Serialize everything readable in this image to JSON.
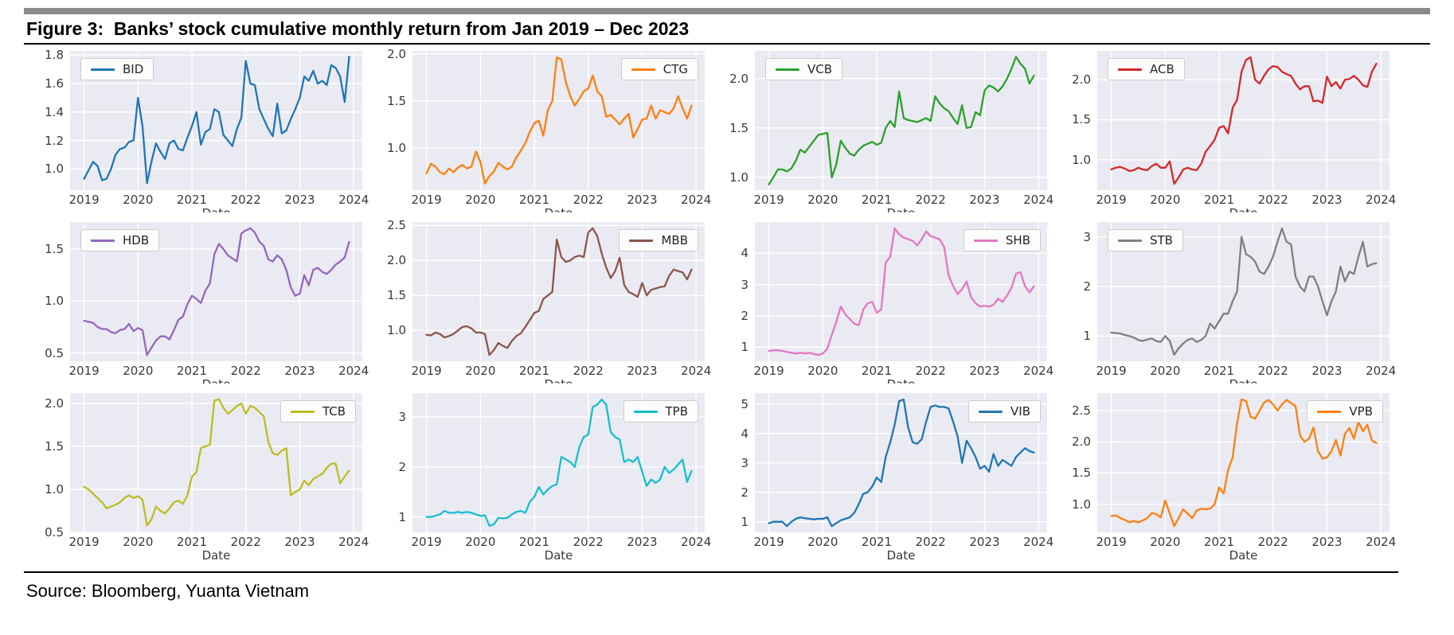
{
  "page": {
    "title": "Figure 3:  Banks’ stock cumulative monthly return from Jan 2019 – Dec 2023",
    "source": "Source: Bloomberg, Yuanta Vietnam",
    "background": "#ffffff",
    "top_bar_color": "#8a8a8a",
    "rule_color": "#000000"
  },
  "axes": {
    "x_label": "Date",
    "x_ticks": [
      "2019",
      "2020",
      "2021",
      "2022",
      "2023",
      "2024"
    ],
    "x_tick_years": [
      2019,
      2020,
      2021,
      2022,
      2023,
      2024
    ],
    "plot_background": "#eaeaf2",
    "grid_color": "#ffffff",
    "grid": true
  },
  "layout": {
    "xlim": [
      2018.74,
      2024.16
    ],
    "rows": 3,
    "cols": 4
  },
  "chart_data": [
    {
      "type": "line",
      "name": "BID",
      "color": "#1f77b4",
      "legend_pos": "top-left",
      "xlabel": "Date",
      "x_start": "2019-01",
      "x_freq_months": 1,
      "x_range": [
        2019.0,
        2023.92
      ],
      "ylim": [
        0.85,
        1.83
      ],
      "y_ticks": [
        1.0,
        1.2,
        1.4,
        1.6,
        1.8
      ],
      "y_tick_labels": [
        "1.0",
        "1.2",
        "1.4",
        "1.6",
        "1.8"
      ],
      "values": [
        0.93,
        0.99,
        1.05,
        1.02,
        0.92,
        0.93,
        1.0,
        1.1,
        1.14,
        1.15,
        1.19,
        1.2,
        1.5,
        1.3,
        0.9,
        1.05,
        1.18,
        1.12,
        1.07,
        1.18,
        1.2,
        1.14,
        1.13,
        1.22,
        1.3,
        1.4,
        1.17,
        1.26,
        1.28,
        1.42,
        1.4,
        1.24,
        1.2,
        1.16,
        1.28,
        1.36,
        1.76,
        1.6,
        1.59,
        1.42,
        1.35,
        1.28,
        1.23,
        1.46,
        1.25,
        1.27,
        1.35,
        1.42,
        1.5,
        1.65,
        1.62,
        1.69,
        1.6,
        1.62,
        1.59,
        1.73,
        1.71,
        1.65,
        1.47,
        1.79
      ]
    },
    {
      "type": "line",
      "name": "CTG",
      "color": "#ff7f0e",
      "legend_pos": "top-right",
      "xlabel": "Date",
      "x_start": "2019-01",
      "x_freq_months": 1,
      "x_range": [
        2019.0,
        2023.92
      ],
      "ylim": [
        0.55,
        2.03
      ],
      "y_ticks": [
        1.0,
        1.5,
        2.0
      ],
      "y_tick_labels": [
        "1.0",
        "1.5",
        "2.0"
      ],
      "values": [
        0.73,
        0.83,
        0.8,
        0.74,
        0.72,
        0.78,
        0.74,
        0.79,
        0.82,
        0.78,
        0.8,
        0.96,
        0.85,
        0.62,
        0.7,
        0.75,
        0.84,
        0.8,
        0.77,
        0.8,
        0.9,
        0.97,
        1.05,
        1.17,
        1.26,
        1.29,
        1.13,
        1.4,
        1.5,
        1.96,
        1.94,
        1.7,
        1.55,
        1.45,
        1.52,
        1.6,
        1.63,
        1.77,
        1.6,
        1.55,
        1.33,
        1.35,
        1.3,
        1.25,
        1.31,
        1.36,
        1.11,
        1.2,
        1.3,
        1.31,
        1.45,
        1.31,
        1.4,
        1.38,
        1.36,
        1.42,
        1.55,
        1.42,
        1.31,
        1.45
      ]
    },
    {
      "type": "line",
      "name": "VCB",
      "color": "#2ca02c",
      "legend_pos": "top-left",
      "xlabel": "Date",
      "x_start": "2019-01",
      "x_freq_months": 1,
      "x_range": [
        2019.0,
        2023.92
      ],
      "ylim": [
        0.87,
        2.28
      ],
      "y_ticks": [
        1.0,
        1.5,
        2.0
      ],
      "y_tick_labels": [
        "1.0",
        "1.5",
        "2.0"
      ],
      "values": [
        0.93,
        1.0,
        1.08,
        1.08,
        1.06,
        1.09,
        1.17,
        1.28,
        1.25,
        1.31,
        1.37,
        1.43,
        1.44,
        1.45,
        1.0,
        1.13,
        1.37,
        1.3,
        1.24,
        1.22,
        1.28,
        1.32,
        1.34,
        1.36,
        1.33,
        1.35,
        1.5,
        1.57,
        1.51,
        1.87,
        1.6,
        1.58,
        1.57,
        1.56,
        1.58,
        1.6,
        1.57,
        1.82,
        1.75,
        1.7,
        1.67,
        1.6,
        1.54,
        1.73,
        1.5,
        1.51,
        1.66,
        1.63,
        1.88,
        1.93,
        1.91,
        1.87,
        1.92,
        2.0,
        2.1,
        2.22,
        2.15,
        2.1,
        1.95,
        2.03
      ]
    },
    {
      "type": "line",
      "name": "ACB",
      "color": "#d62728",
      "legend_pos": "top-left",
      "xlabel": "Date",
      "x_start": "2019-01",
      "x_freq_months": 1,
      "x_range": [
        2019.0,
        2023.92
      ],
      "ylim": [
        0.62,
        2.36
      ],
      "y_ticks": [
        1.0,
        1.5,
        2.0
      ],
      "y_tick_labels": [
        "1.0",
        "1.5",
        "2.0"
      ],
      "values": [
        0.88,
        0.9,
        0.91,
        0.89,
        0.86,
        0.87,
        0.9,
        0.88,
        0.87,
        0.92,
        0.95,
        0.9,
        0.9,
        0.98,
        0.7,
        0.78,
        0.88,
        0.9,
        0.88,
        0.87,
        0.95,
        1.1,
        1.17,
        1.25,
        1.4,
        1.42,
        1.33,
        1.65,
        1.75,
        2.1,
        2.25,
        2.28,
        2.0,
        1.95,
        2.05,
        2.13,
        2.17,
        2.16,
        2.1,
        2.07,
        2.05,
        1.95,
        1.88,
        1.92,
        1.92,
        1.73,
        1.74,
        1.71,
        2.04,
        1.92,
        1.97,
        1.89,
        2.0,
        2.01,
        2.05,
        2.0,
        1.93,
        1.91,
        2.1,
        2.2
      ]
    },
    {
      "type": "line",
      "name": "HDB",
      "color": "#9467bd",
      "legend_pos": "top-left",
      "xlabel": "Date",
      "x_start": "2019-01",
      "x_freq_months": 1,
      "x_range": [
        2019.0,
        2023.92
      ],
      "ylim": [
        0.42,
        1.76
      ],
      "y_ticks": [
        0.5,
        1.0,
        1.5
      ],
      "y_tick_labels": [
        "0.5",
        "1.0",
        "1.5"
      ],
      "values": [
        0.81,
        0.8,
        0.79,
        0.75,
        0.73,
        0.73,
        0.7,
        0.69,
        0.72,
        0.73,
        0.78,
        0.71,
        0.74,
        0.72,
        0.48,
        0.55,
        0.62,
        0.66,
        0.66,
        0.63,
        0.72,
        0.82,
        0.85,
        0.97,
        1.05,
        1.02,
        0.98,
        1.1,
        1.17,
        1.45,
        1.55,
        1.5,
        1.44,
        1.41,
        1.38,
        1.65,
        1.68,
        1.7,
        1.66,
        1.57,
        1.53,
        1.4,
        1.38,
        1.44,
        1.4,
        1.3,
        1.13,
        1.05,
        1.07,
        1.25,
        1.15,
        1.3,
        1.32,
        1.28,
        1.26,
        1.3,
        1.35,
        1.38,
        1.42,
        1.57
      ]
    },
    {
      "type": "line",
      "name": "MBB",
      "color": "#8c564b",
      "legend_pos": "top-right",
      "xlabel": "Date",
      "x_start": "2019-01",
      "x_freq_months": 1,
      "x_range": [
        2019.0,
        2023.92
      ],
      "ylim": [
        0.56,
        2.55
      ],
      "y_ticks": [
        1.0,
        1.5,
        2.0,
        2.5
      ],
      "y_tick_labels": [
        "1.0",
        "1.5",
        "2.0",
        "2.5"
      ],
      "values": [
        0.94,
        0.93,
        0.97,
        0.95,
        0.9,
        0.92,
        0.95,
        1.0,
        1.05,
        1.06,
        1.03,
        0.97,
        0.97,
        0.95,
        0.65,
        0.72,
        0.82,
        0.78,
        0.75,
        0.85,
        0.92,
        0.96,
        1.05,
        1.15,
        1.25,
        1.28,
        1.45,
        1.5,
        1.55,
        2.3,
        2.05,
        1.98,
        2.0,
        2.05,
        2.07,
        2.05,
        2.4,
        2.46,
        2.35,
        2.1,
        1.9,
        1.75,
        1.85,
        2.04,
        1.65,
        1.55,
        1.52,
        1.48,
        1.68,
        1.5,
        1.58,
        1.6,
        1.62,
        1.63,
        1.78,
        1.87,
        1.85,
        1.83,
        1.73,
        1.87
      ]
    },
    {
      "type": "line",
      "name": "SHB",
      "color": "#e377c2",
      "legend_pos": "top-right",
      "xlabel": "Date",
      "x_start": "2019-01",
      "x_freq_months": 1,
      "x_range": [
        2019.0,
        2023.92
      ],
      "ylim": [
        0.55,
        5.0
      ],
      "y_ticks": [
        1,
        2,
        3,
        4
      ],
      "y_tick_labels": [
        "1",
        "2",
        "3",
        "4"
      ],
      "values": [
        0.88,
        0.9,
        0.9,
        0.88,
        0.85,
        0.82,
        0.8,
        0.82,
        0.8,
        0.82,
        0.78,
        0.75,
        0.8,
        0.95,
        1.4,
        1.8,
        2.3,
        2.05,
        1.9,
        1.75,
        1.7,
        2.2,
        2.4,
        2.45,
        2.1,
        2.2,
        3.7,
        3.9,
        4.8,
        4.6,
        4.5,
        4.45,
        4.4,
        4.25,
        4.45,
        4.7,
        4.55,
        4.5,
        4.45,
        4.2,
        3.3,
        2.95,
        2.7,
        2.85,
        3.1,
        2.6,
        2.4,
        2.3,
        2.32,
        2.3,
        2.35,
        2.55,
        2.45,
        2.65,
        2.9,
        3.35,
        3.4,
        2.95,
        2.75,
        2.95
      ]
    },
    {
      "type": "line",
      "name": "STB",
      "color": "#7f7f7f",
      "legend_pos": "top-left",
      "xlabel": "Date",
      "x_start": "2019-01",
      "x_freq_months": 1,
      "x_range": [
        2019.0,
        2023.92
      ],
      "ylim": [
        0.49,
        3.3
      ],
      "y_ticks": [
        1,
        2,
        3
      ],
      "y_tick_labels": [
        "1",
        "2",
        "3"
      ],
      "values": [
        1.07,
        1.06,
        1.05,
        1.02,
        1.0,
        0.97,
        0.92,
        0.9,
        0.93,
        0.95,
        0.9,
        0.88,
        1.0,
        0.9,
        0.62,
        0.75,
        0.85,
        0.92,
        0.95,
        0.88,
        0.92,
        1.0,
        1.25,
        1.15,
        1.3,
        1.45,
        1.45,
        1.7,
        1.9,
        3.0,
        2.65,
        2.6,
        2.5,
        2.3,
        2.25,
        2.4,
        2.6,
        2.9,
        3.17,
        2.9,
        2.85,
        2.2,
        2.0,
        1.9,
        2.2,
        2.2,
        2.0,
        1.7,
        1.42,
        1.7,
        1.9,
        2.4,
        2.1,
        2.3,
        2.25,
        2.6,
        2.9,
        2.4,
        2.45,
        2.47
      ]
    },
    {
      "type": "line",
      "name": "TCB",
      "color": "#bcbd22",
      "legend_pos": "top-right",
      "xlabel": "Date",
      "x_start": "2019-01",
      "x_freq_months": 1,
      "x_range": [
        2019.0,
        2023.92
      ],
      "ylim": [
        0.5,
        2.12
      ],
      "y_ticks": [
        0.5,
        1.0,
        1.5,
        2.0
      ],
      "y_tick_labels": [
        "0.5",
        "1.0",
        "1.5",
        "2.0"
      ],
      "values": [
        1.03,
        1.0,
        0.95,
        0.9,
        0.85,
        0.78,
        0.8,
        0.82,
        0.85,
        0.9,
        0.93,
        0.9,
        0.92,
        0.88,
        0.58,
        0.65,
        0.8,
        0.75,
        0.72,
        0.78,
        0.85,
        0.87,
        0.83,
        0.93,
        1.15,
        1.2,
        1.48,
        1.5,
        1.52,
        2.03,
        2.05,
        1.95,
        1.88,
        1.92,
        1.97,
        2.0,
        1.88,
        1.97,
        1.95,
        1.9,
        1.85,
        1.55,
        1.42,
        1.4,
        1.45,
        1.48,
        0.93,
        0.97,
        1.0,
        1.1,
        1.05,
        1.12,
        1.15,
        1.18,
        1.25,
        1.3,
        1.3,
        1.07,
        1.15,
        1.22
      ]
    },
    {
      "type": "line",
      "name": "TPB",
      "color": "#17becf",
      "legend_pos": "top-right",
      "xlabel": "Date",
      "x_start": "2019-01",
      "x_freq_months": 1,
      "x_range": [
        2019.0,
        2023.92
      ],
      "ylim": [
        0.69,
        3.48
      ],
      "y_ticks": [
        1,
        2,
        3
      ],
      "y_tick_labels": [
        "1",
        "2",
        "3"
      ],
      "values": [
        1.0,
        1.0,
        1.02,
        1.05,
        1.12,
        1.08,
        1.08,
        1.1,
        1.08,
        1.1,
        1.08,
        1.05,
        1.02,
        1.03,
        0.82,
        0.85,
        0.98,
        0.97,
        0.98,
        1.05,
        1.1,
        1.12,
        1.08,
        1.3,
        1.4,
        1.6,
        1.45,
        1.55,
        1.62,
        1.65,
        2.2,
        2.15,
        2.1,
        2.0,
        2.4,
        2.6,
        2.65,
        3.2,
        3.25,
        3.35,
        3.25,
        2.7,
        2.6,
        2.55,
        2.1,
        2.15,
        2.1,
        2.2,
        1.9,
        1.62,
        1.75,
        1.68,
        1.75,
        2.0,
        1.88,
        1.95,
        2.05,
        2.15,
        1.7,
        1.92
      ]
    },
    {
      "type": "line",
      "name": "VIB",
      "color": "#1f77b4",
      "legend_pos": "top-right",
      "xlabel": "Date",
      "x_start": "2019-01",
      "x_freq_months": 1,
      "x_range": [
        2019.0,
        2023.92
      ],
      "ylim": [
        0.64,
        5.37
      ],
      "y_ticks": [
        1,
        2,
        3,
        4,
        5
      ],
      "y_tick_labels": [
        "1",
        "2",
        "3",
        "4",
        "5"
      ],
      "values": [
        0.95,
        1.0,
        1.0,
        1.0,
        0.85,
        1.0,
        1.1,
        1.15,
        1.12,
        1.1,
        1.08,
        1.1,
        1.1,
        1.15,
        0.85,
        0.95,
        1.05,
        1.1,
        1.15,
        1.3,
        1.6,
        1.95,
        2.0,
        2.2,
        2.5,
        2.35,
        3.2,
        3.7,
        4.3,
        5.1,
        5.15,
        4.2,
        3.7,
        3.65,
        3.8,
        4.4,
        4.9,
        4.95,
        4.9,
        4.9,
        4.85,
        4.4,
        3.9,
        3.0,
        3.75,
        3.5,
        3.2,
        2.8,
        2.9,
        2.7,
        3.3,
        2.9,
        3.1,
        3.0,
        2.9,
        3.2,
        3.35,
        3.5,
        3.4,
        3.35
      ]
    },
    {
      "type": "line",
      "name": "VPB",
      "color": "#ff7f0e",
      "legend_pos": "top-right",
      "xlabel": "Date",
      "x_start": "2019-01",
      "x_freq_months": 1,
      "x_range": [
        2019.0,
        2023.92
      ],
      "ylim": [
        0.55,
        2.78
      ],
      "y_ticks": [
        1.0,
        1.5,
        2.0,
        2.5
      ],
      "y_tick_labels": [
        "1.0",
        "1.5",
        "2.0",
        "2.5"
      ],
      "values": [
        0.81,
        0.82,
        0.78,
        0.75,
        0.71,
        0.73,
        0.71,
        0.74,
        0.78,
        0.86,
        0.84,
        0.79,
        1.06,
        0.85,
        0.65,
        0.78,
        0.92,
        0.85,
        0.78,
        0.9,
        0.93,
        0.92,
        0.93,
        1.0,
        1.27,
        1.17,
        1.55,
        1.75,
        2.3,
        2.68,
        2.65,
        2.4,
        2.37,
        2.5,
        2.63,
        2.67,
        2.6,
        2.5,
        2.6,
        2.67,
        2.62,
        2.57,
        2.1,
        2.0,
        2.05,
        2.23,
        1.85,
        1.73,
        1.75,
        1.85,
        2.03,
        1.78,
        2.13,
        2.22,
        2.05,
        2.32,
        2.17,
        2.27,
        2.02,
        1.98
      ]
    }
  ]
}
